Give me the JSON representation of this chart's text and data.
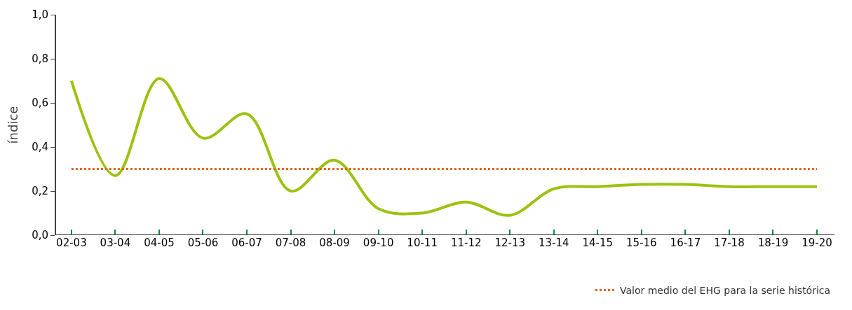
{
  "chart_data": {
    "type": "line",
    "ylabel": "índice",
    "categories": [
      "02-03",
      "03-04",
      "04-05",
      "05-06",
      "06-07",
      "07-08",
      "08-09",
      "09-10",
      "10-11",
      "11-12",
      "12-13",
      "13-14",
      "14-15",
      "15-16",
      "16-17",
      "17-18",
      "18-19",
      "19-20"
    ],
    "series": [
      {
        "color": "#9bc20f",
        "values": [
          0.7,
          0.27,
          0.71,
          0.44,
          0.55,
          0.2,
          0.34,
          0.12,
          0.1,
          0.15,
          0.09,
          0.21,
          0.22,
          0.23,
          0.23,
          0.22,
          0.22,
          0.22
        ]
      }
    ],
    "ylim": [
      0,
      1
    ],
    "yticks": [
      {
        "value": 0,
        "label": "0,0"
      },
      {
        "value": 0.2,
        "label": "0,2"
      },
      {
        "value": 0.4,
        "label": "0,4"
      },
      {
        "value": 0.6,
        "label": "0,6"
      },
      {
        "value": 0.8,
        "label": "0,8"
      },
      {
        "value": 1,
        "label": "1,0"
      }
    ],
    "ref_lines": [
      {
        "axis": "y",
        "value": 0.3,
        "label": "Valor medio del EHG para la serie histórica",
        "color": "#e0661e",
        "line_style": "dotted"
      }
    ],
    "legend": "bottom right",
    "marker": "none",
    "line_style": "solid"
  }
}
